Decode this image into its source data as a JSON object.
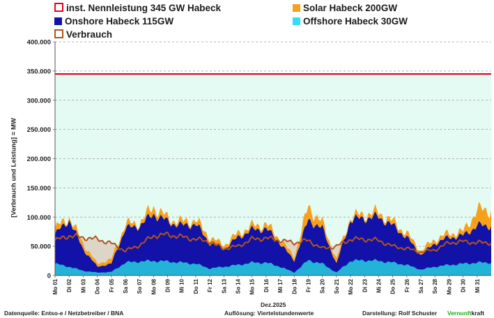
{
  "legend": [
    {
      "key": "nennleistung",
      "label": "inst. Nennleistung 345 GW Habeck",
      "color": "#e8001c"
    },
    {
      "key": "solar",
      "label": "Solar Habeck 200GW",
      "color": "#f7a11a"
    },
    {
      "key": "onshore",
      "label": "Onshore Habeck 115GW",
      "color": "#1212a8"
    },
    {
      "key": "offshore",
      "label": "Offshore Habeck 30GW",
      "color": "#33ddf2"
    },
    {
      "key": "verbrauch",
      "label": "Verbrauch",
      "color": "#b2531c"
    }
  ],
  "chart_data": {
    "type": "area",
    "ylabel": "[Verbrauch und Leistung] = MW",
    "xlabel": "Dez.2025",
    "ylim": [
      0,
      400000
    ],
    "yticks": [
      "0",
      "50.000",
      "100.000",
      "150.000",
      "200.000",
      "250.000",
      "300.000",
      "350.000",
      "400.000"
    ],
    "xticks": [
      "Mo 01",
      "Di 02",
      "Mi 03",
      "Do 04",
      "Fr 05",
      "Sa 06",
      "So 07",
      "Mo 08",
      "Di 09",
      "Mi 10",
      "Do 11",
      "Fr 12",
      "Sa 13",
      "So 14",
      "Mo 15",
      "Di 16",
      "Mi 17",
      "Do 18",
      "Fr 19",
      "Sa 20",
      "So 21",
      "Mo 22",
      "Di 23",
      "Mi 24",
      "Do 25",
      "Fr 26",
      "Sa 27",
      "So 28",
      "Mo 29",
      "Di 30",
      "Mi 31"
    ],
    "nennleistung": 345000,
    "series": [
      {
        "name": "Offshore Habeck 30GW",
        "values": [
          20000,
          15000,
          8000,
          5000,
          6000,
          22000,
          24000,
          25000,
          24000,
          22000,
          20000,
          12000,
          15000,
          18000,
          22000,
          22000,
          15000,
          5000,
          26000,
          20000,
          5000,
          25000,
          26000,
          25000,
          22000,
          18000,
          10000,
          15000,
          18000,
          20000,
          22000
        ]
      },
      {
        "name": "Onshore Habeck 115GW",
        "values": [
          70000,
          95000,
          45000,
          15000,
          20000,
          80000,
          85000,
          105000,
          92000,
          85000,
          88000,
          55000,
          45000,
          65000,
          78000,
          80000,
          55000,
          25000,
          95000,
          80000,
          20000,
          95000,
          98000,
          100000,
          85000,
          65000,
          35000,
          55000,
          65000,
          68000,
          85000
        ]
      },
      {
        "name": "Solar Habeck 200GW",
        "values": [
          80000,
          100000,
          55000,
          20000,
          28000,
          88000,
          90000,
          118000,
          98000,
          92000,
          95000,
          65000,
          52000,
          72000,
          85000,
          88000,
          62000,
          32000,
          118000,
          90000,
          28000,
          100000,
          105000,
          108000,
          92000,
          72000,
          42000,
          62000,
          72000,
          75000,
          112000
        ]
      },
      {
        "name": "Verbrauch",
        "values": [
          60000,
          68000,
          65000,
          62000,
          55000,
          42000,
          52000,
          68000,
          70000,
          66000,
          62000,
          58000,
          46000,
          50000,
          62000,
          64000,
          60000,
          56000,
          60000,
          46000,
          50000,
          62000,
          62000,
          60000,
          50000,
          46000,
          40000,
          44000,
          56000,
          58000,
          56000
        ]
      }
    ]
  },
  "footer": {
    "source": "Datenquelle: Entso-e  / Netzbetreiber / BNA",
    "resolution": "Auflösung: Viertelstundenwerte",
    "author": "Darstellung:   Rolf Schuster",
    "brand_a": "Vernunft",
    "brand_b": "kraft"
  }
}
